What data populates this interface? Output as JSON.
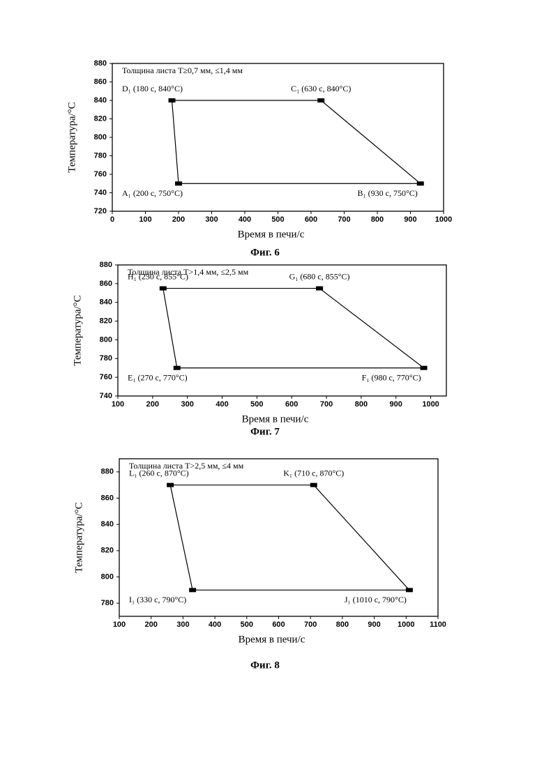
{
  "chart_data": [
    {
      "type": "line",
      "closed": true,
      "annotation": "Толщина листа T≥0,7 мм, ≤1,4 мм",
      "x_label": "Время в печи/с",
      "y_label": "Температура/°C",
      "caption": "Фиг. 6",
      "x": [
        200,
        180,
        630,
        930
      ],
      "series": [
        {
          "color": "#000000",
          "values": [
            750,
            840,
            840,
            750
          ]
        }
      ],
      "point_labels": [
        "A₁ (200 с, 750°C)",
        "D₁ (180 с, 840°C)",
        "C₁ (630 с, 840°C)",
        "B₁ (930 с, 750°C)"
      ],
      "xlim": [
        0,
        1000
      ],
      "xticks": [
        0,
        100,
        200,
        300,
        400,
        500,
        600,
        700,
        800,
        900,
        1000
      ],
      "ylim": [
        720,
        880
      ],
      "yticks": [
        720,
        740,
        760,
        780,
        800,
        820,
        840,
        860,
        880
      ]
    },
    {
      "type": "line",
      "closed": true,
      "annotation": "Толщина листа T>1,4 мм, ≤2,5 мм",
      "x_label": "Время в печи/с",
      "y_label": "Температура/°C",
      "caption": "Фиг. 7",
      "x": [
        270,
        230,
        680,
        980
      ],
      "series": [
        {
          "color": "#000000",
          "values": [
            770,
            855,
            855,
            770
          ]
        }
      ],
      "point_labels": [
        "E₁ (270 с, 770°C)",
        "H₁ (230 с, 855°C)",
        "G₁ (680 с, 855°C)",
        "F₁ (980 с, 770°C)"
      ],
      "xlim": [
        100,
        1045
      ],
      "xticks": [
        100,
        200,
        300,
        400,
        500,
        600,
        700,
        800,
        900,
        1000
      ],
      "ylim": [
        740,
        880
      ],
      "yticks": [
        740,
        760,
        780,
        800,
        820,
        840,
        860,
        880
      ]
    },
    {
      "type": "line",
      "closed": true,
      "annotation": "Толщина листа T>2,5 мм, ≤4 мм",
      "x_label": "Время в печи/с",
      "y_label": "Температура/°C",
      "caption": "Фиг. 8",
      "x": [
        330,
        260,
        710,
        1010
      ],
      "series": [
        {
          "color": "#000000",
          "values": [
            790,
            870,
            870,
            790
          ]
        }
      ],
      "point_labels": [
        "I₁ (330 с, 790°C)",
        "L₁ (260 с, 870°C)",
        "K₁ (710 с, 870°C)",
        "J₁ (1010 с, 790°C)"
      ],
      "xlim": [
        100,
        1100
      ],
      "xticks": [
        100,
        200,
        300,
        400,
        500,
        600,
        700,
        800,
        900,
        1000,
        1100
      ],
      "ylim": [
        770,
        890
      ],
      "yticks": [
        780,
        800,
        820,
        840,
        860,
        880
      ]
    }
  ]
}
